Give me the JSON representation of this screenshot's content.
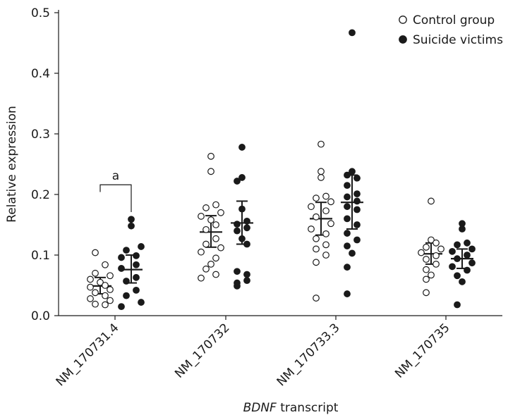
{
  "chart_data": {
    "type": "scatter",
    "ylabel": "Relative expression",
    "xlabel_italic": "BDNF",
    "xlabel_rest": " transcript",
    "ylim": [
      0,
      0.5
    ],
    "yticks": [
      "0.0",
      "0.1",
      "0.2",
      "0.3",
      "0.4",
      "0.5"
    ],
    "categories": [
      "NM_170731.4",
      "NM_170732",
      "NM_170733.3",
      "NM_170735"
    ],
    "legend": {
      "placement": "top-right"
    },
    "annotation": {
      "text": "a",
      "category": "NM_170731.4"
    },
    "series": [
      {
        "name": "Control group",
        "marker": "open-circle",
        "groups": [
          {
            "points": [
              {
                "y": 0.104,
                "dx": -1
              },
              {
                "y": 0.084,
                "dx": 1
              },
              {
                "y": 0.07,
                "dx": -1
              },
              {
                "y": 0.066,
                "dx": 2
              },
              {
                "y": 0.06,
                "dx": -2
              },
              {
                "y": 0.055,
                "dx": 0
              },
              {
                "y": 0.05,
                "dx": 1
              },
              {
                "y": 0.047,
                "dx": -2
              },
              {
                "y": 0.043,
                "dx": 2
              },
              {
                "y": 0.038,
                "dx": -1
              },
              {
                "y": 0.033,
                "dx": 1
              },
              {
                "y": 0.028,
                "dx": -2
              },
              {
                "y": 0.025,
                "dx": 2
              },
              {
                "y": 0.019,
                "dx": -1
              },
              {
                "y": 0.018,
                "dx": 1
              }
            ],
            "mean": 0.049,
            "ci": [
              0.036,
              0.063
            ]
          },
          {
            "points": [
              {
                "y": 0.263,
                "dx": 0
              },
              {
                "y": 0.238,
                "dx": 0
              },
              {
                "y": 0.183,
                "dx": 1
              },
              {
                "y": 0.178,
                "dx": -1
              },
              {
                "y": 0.17,
                "dx": 2
              },
              {
                "y": 0.164,
                "dx": -2
              },
              {
                "y": 0.158,
                "dx": 0
              },
              {
                "y": 0.15,
                "dx": 1
              },
              {
                "y": 0.142,
                "dx": -1
              },
              {
                "y": 0.127,
                "dx": 1
              },
              {
                "y": 0.118,
                "dx": -1
              },
              {
                "y": 0.112,
                "dx": 2
              },
              {
                "y": 0.105,
                "dx": -2
              },
              {
                "y": 0.095,
                "dx": 1
              },
              {
                "y": 0.085,
                "dx": 0
              },
              {
                "y": 0.077,
                "dx": -1
              },
              {
                "y": 0.068,
                "dx": 1
              },
              {
                "y": 0.062,
                "dx": -2
              }
            ],
            "mean": 0.138,
            "ci": [
              0.113,
              0.165
            ]
          },
          {
            "points": [
              {
                "y": 0.283,
                "dx": 0
              },
              {
                "y": 0.238,
                "dx": 0
              },
              {
                "y": 0.228,
                "dx": 0
              },
              {
                "y": 0.197,
                "dx": 1
              },
              {
                "y": 0.194,
                "dx": -1
              },
              {
                "y": 0.188,
                "dx": 2
              },
              {
                "y": 0.18,
                "dx": -2
              },
              {
                "y": 0.173,
                "dx": 1
              },
              {
                "y": 0.163,
                "dx": -1
              },
              {
                "y": 0.152,
                "dx": 2
              },
              {
                "y": 0.143,
                "dx": -2
              },
              {
                "y": 0.135,
                "dx": 1
              },
              {
                "y": 0.127,
                "dx": -1
              },
              {
                "y": 0.117,
                "dx": 1
              },
              {
                "y": 0.11,
                "dx": -1
              },
              {
                "y": 0.1,
                "dx": 1
              },
              {
                "y": 0.088,
                "dx": -1
              },
              {
                "y": 0.029,
                "dx": -1
              }
            ],
            "mean": 0.16,
            "ci": [
              0.133,
              0.187
            ]
          },
          {
            "points": [
              {
                "y": 0.189,
                "dx": 0
              },
              {
                "y": 0.125,
                "dx": 0
              },
              {
                "y": 0.12,
                "dx": 1
              },
              {
                "y": 0.113,
                "dx": -1
              },
              {
                "y": 0.11,
                "dx": 2
              },
              {
                "y": 0.104,
                "dx": -2
              },
              {
                "y": 0.099,
                "dx": 1
              },
              {
                "y": 0.093,
                "dx": -1
              },
              {
                "y": 0.085,
                "dx": 1
              },
              {
                "y": 0.076,
                "dx": -1
              },
              {
                "y": 0.067,
                "dx": 0
              },
              {
                "y": 0.06,
                "dx": -1
              },
              {
                "y": 0.038,
                "dx": -1
              }
            ],
            "mean": 0.102,
            "ci": [
              0.085,
              0.12
            ]
          }
        ]
      },
      {
        "name": "Suicide victims",
        "marker": "filled-circle",
        "groups": [
          {
            "points": [
              {
                "y": 0.159,
                "dx": 0
              },
              {
                "y": 0.148,
                "dx": 0
              },
              {
                "y": 0.114,
                "dx": 2
              },
              {
                "y": 0.108,
                "dx": -1
              },
              {
                "y": 0.099,
                "dx": 1
              },
              {
                "y": 0.096,
                "dx": -2
              },
              {
                "y": 0.084,
                "dx": 1
              },
              {
                "y": 0.078,
                "dx": -2
              },
              {
                "y": 0.063,
                "dx": 1
              },
              {
                "y": 0.057,
                "dx": -1
              },
              {
                "y": 0.042,
                "dx": 1
              },
              {
                "y": 0.033,
                "dx": -1
              },
              {
                "y": 0.022,
                "dx": 2
              },
              {
                "y": 0.015,
                "dx": -2
              }
            ],
            "mean": 0.076,
            "ci": [
              0.054,
              0.1
            ]
          },
          {
            "points": [
              {
                "y": 0.278,
                "dx": 0
              },
              {
                "y": 0.228,
                "dx": 0
              },
              {
                "y": 0.222,
                "dx": -1
              },
              {
                "y": 0.176,
                "dx": 0
              },
              {
                "y": 0.156,
                "dx": 1
              },
              {
                "y": 0.151,
                "dx": -1
              },
              {
                "y": 0.145,
                "dx": 1
              },
              {
                "y": 0.14,
                "dx": -1
              },
              {
                "y": 0.127,
                "dx": 0
              },
              {
                "y": 0.118,
                "dx": 1
              },
              {
                "y": 0.073,
                "dx": -1
              },
              {
                "y": 0.068,
                "dx": 1
              },
              {
                "y": 0.058,
                "dx": 1
              },
              {
                "y": 0.054,
                "dx": -1
              },
              {
                "y": 0.049,
                "dx": -1
              }
            ],
            "mean": 0.153,
            "ci": [
              0.118,
              0.189
            ]
          },
          {
            "points": [
              {
                "y": 0.467,
                "dx": 0
              },
              {
                "y": 0.238,
                "dx": 0
              },
              {
                "y": 0.232,
                "dx": -1
              },
              {
                "y": 0.227,
                "dx": 1
              },
              {
                "y": 0.215,
                "dx": -1
              },
              {
                "y": 0.201,
                "dx": 1
              },
              {
                "y": 0.196,
                "dx": -1
              },
              {
                "y": 0.189,
                "dx": 1
              },
              {
                "y": 0.18,
                "dx": -1
              },
              {
                "y": 0.175,
                "dx": 1
              },
              {
                "y": 0.16,
                "dx": -1
              },
              {
                "y": 0.15,
                "dx": 1
              },
              {
                "y": 0.136,
                "dx": -1
              },
              {
                "y": 0.125,
                "dx": 1
              },
              {
                "y": 0.115,
                "dx": -1
              },
              {
                "y": 0.103,
                "dx": 0
              },
              {
                "y": 0.08,
                "dx": -1
              },
              {
                "y": 0.036,
                "dx": -1
              }
            ],
            "mean": 0.187,
            "ci": [
              0.143,
              0.232
            ]
          },
          {
            "points": [
              {
                "y": 0.152,
                "dx": 0
              },
              {
                "y": 0.143,
                "dx": 0
              },
              {
                "y": 0.12,
                "dx": 1
              },
              {
                "y": 0.117,
                "dx": -1
              },
              {
                "y": 0.11,
                "dx": 2
              },
              {
                "y": 0.106,
                "dx": -2
              },
              {
                "y": 0.1,
                "dx": 1
              },
              {
                "y": 0.094,
                "dx": -1
              },
              {
                "y": 0.087,
                "dx": 2
              },
              {
                "y": 0.081,
                "dx": -2
              },
              {
                "y": 0.075,
                "dx": 1
              },
              {
                "y": 0.066,
                "dx": -1
              },
              {
                "y": 0.056,
                "dx": 0
              },
              {
                "y": 0.018,
                "dx": -1
              }
            ],
            "mean": 0.094,
            "ci": [
              0.078,
              0.11
            ]
          }
        ]
      }
    ]
  },
  "colors": {
    "ink": "#1a1a1a",
    "open_fill": "#ffffff",
    "background": "#ffffff"
  }
}
